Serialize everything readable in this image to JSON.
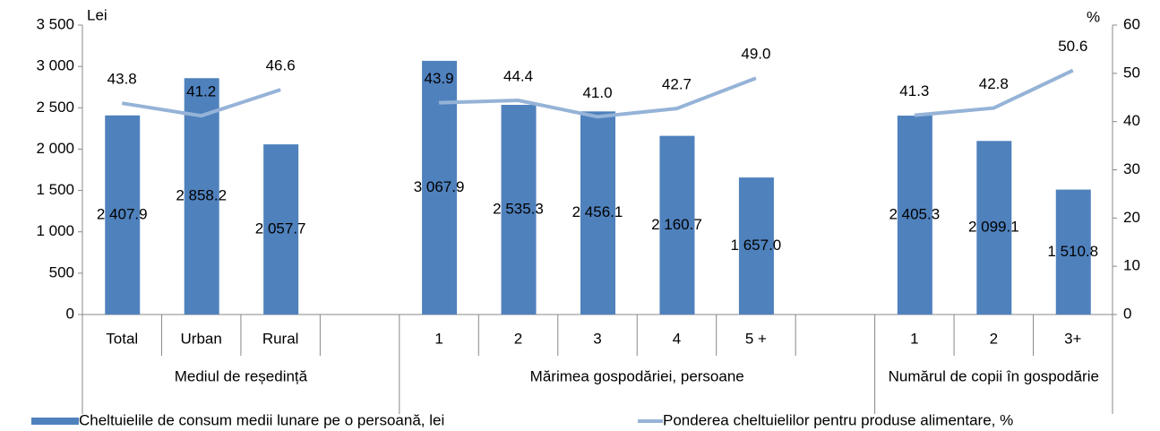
{
  "chart_data": {
    "type": "bar-line",
    "y_label": "Lei",
    "y2_label": "%",
    "categories": [
      "Total",
      "Urban",
      "Rural",
      null,
      "1",
      "2",
      "3",
      "4",
      "5 +",
      null,
      "1",
      "2",
      "3+"
    ],
    "groups": [
      {
        "name": "Mediul de reședință",
        "from": 0,
        "to": 3
      },
      {
        "name": "Mărimea gospodăriei, persoane",
        "from": 4,
        "to": 9
      },
      {
        "name": "Numărul de copii în gospodărie",
        "from": 10,
        "to": 12
      }
    ],
    "series": [
      {
        "name": "Cheltuielile de consum medii lunare pe o persoană, lei",
        "type": "bar",
        "color": "#4f81bd",
        "values": [
          2407.9,
          2858.2,
          2057.7,
          null,
          3067.9,
          2535.3,
          2456.1,
          2160.7,
          1657.0,
          null,
          2405.3,
          2099.1,
          1510.8
        ],
        "value_labels": [
          "2 407.9",
          "2 858.2",
          "2 057.7",
          null,
          "3 067.9",
          "2 535.3",
          "2 456.1",
          "2 160.7",
          "1 657.0",
          null,
          "2 405.3",
          "2 099.1",
          "1 510.8"
        ]
      },
      {
        "name": "Ponderea cheltuielilor pentru produse alimentare, %",
        "type": "line",
        "axis": "y2",
        "color": "#95b3d7",
        "values": [
          43.8,
          41.2,
          46.6,
          null,
          43.9,
          44.4,
          41.0,
          42.7,
          49.0,
          null,
          41.3,
          42.8,
          50.6
        ],
        "value_labels": [
          "43.8",
          "41.2",
          "46.6",
          null,
          "43.9",
          "44.4",
          "41.0",
          "42.7",
          "49.0",
          null,
          "41.3",
          "42.8",
          "50.6"
        ]
      }
    ],
    "ylim": [
      0,
      3500
    ],
    "yticks": [
      0,
      500,
      {
        "value": 1000,
        "label": "1 000"
      },
      {
        "value": 1500,
        "label": "1 500"
      },
      {
        "value": 2000,
        "label": "2 000"
      },
      {
        "value": 2500,
        "label": "2 500"
      },
      {
        "value": 3000,
        "label": "3 000"
      },
      {
        "value": 3500,
        "label": "3 500"
      }
    ],
    "y2lim": [
      0,
      60
    ],
    "y2ticks": [
      0,
      10,
      20,
      30,
      40,
      50,
      60
    ]
  }
}
